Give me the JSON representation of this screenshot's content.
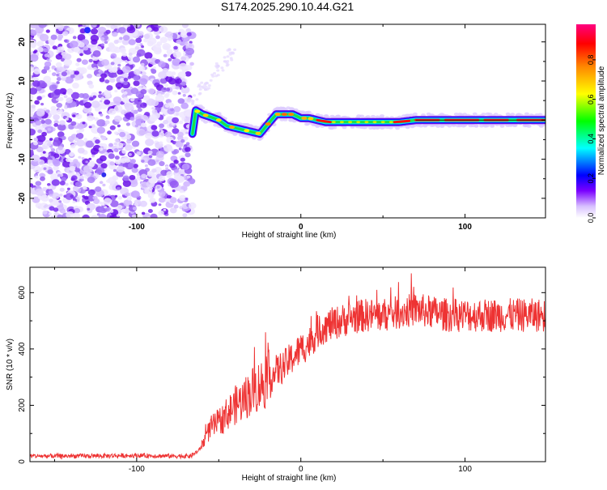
{
  "title": "S174.2025.290.10.44.G21",
  "chart_data": [
    {
      "type": "heatmap",
      "title": "S174.2025.290.10.44.G21",
      "xlabel": "Height of straight line (km)",
      "ylabel": "Frequency (Hz)",
      "xlim": [
        -165,
        149
      ],
      "ylim": [
        -25,
        24.5
      ],
      "x_ticks": [
        -100,
        0,
        100
      ],
      "y_ticks": [
        -20,
        -10,
        0,
        10,
        20
      ],
      "noise_region_x": [
        -165,
        -67
      ],
      "ridge": {
        "x": [
          -66,
          -64,
          -60,
          -55,
          -50,
          -45,
          -40,
          -35,
          -30,
          -25,
          -20,
          -15,
          -10,
          -5,
          0,
          5,
          10,
          15,
          20,
          30,
          40,
          50,
          57,
          60,
          70,
          80,
          100,
          120,
          149
        ],
        "freq": [
          -3.5,
          2.5,
          1.5,
          0.8,
          0,
          -1.5,
          -2,
          -2.5,
          -3,
          -3.5,
          -1,
          1.5,
          1.5,
          1.5,
          0.5,
          0.5,
          0,
          -0.5,
          -0.5,
          -0.5,
          -0.5,
          -0.5,
          -0.5,
          -0.5,
          0,
          0,
          0,
          0,
          0
        ]
      },
      "colorbar": {
        "label": "Normalized spectral amplitude",
        "ticks": [
          "0.0",
          "0.2",
          "0.4",
          "0.6",
          "0.8"
        ],
        "range": [
          0,
          0.98
        ],
        "colors": [
          "#ffffff",
          "#c8a8ff",
          "#7a00ff",
          "#0000ff",
          "#00ffff",
          "#00ff00",
          "#ffff00",
          "#ff8800",
          "#ff0000",
          "#ff0080"
        ]
      }
    },
    {
      "type": "line",
      "xlabel": "Height of straight line (km)",
      "ylabel": "SNR (10 * v/v)",
      "xlim": [
        -165,
        149
      ],
      "ylim": [
        0,
        690
      ],
      "x_ticks": [
        -100,
        0,
        100
      ],
      "y_ticks": [
        0,
        200,
        400,
        600
      ],
      "series": [
        {
          "name": "SNR",
          "color": "#ee3333",
          "x": [
            -165,
            -130,
            -100,
            -80,
            -67,
            -62,
            -55,
            -50,
            -45,
            -40,
            -35,
            -30,
            -25,
            -20,
            -15,
            -10,
            -5,
            0,
            5,
            10,
            15,
            20,
            30,
            40,
            50,
            60,
            70,
            80,
            90,
            100,
            110,
            120,
            130,
            140,
            149
          ],
          "values": [
            20,
            20,
            22,
            20,
            20,
            40,
            120,
            140,
            170,
            200,
            220,
            250,
            270,
            290,
            320,
            340,
            370,
            400,
            420,
            460,
            480,
            490,
            510,
            520,
            520,
            530,
            540,
            530,
            520,
            520,
            520,
            520,
            520,
            520,
            520
          ]
        }
      ]
    }
  ]
}
